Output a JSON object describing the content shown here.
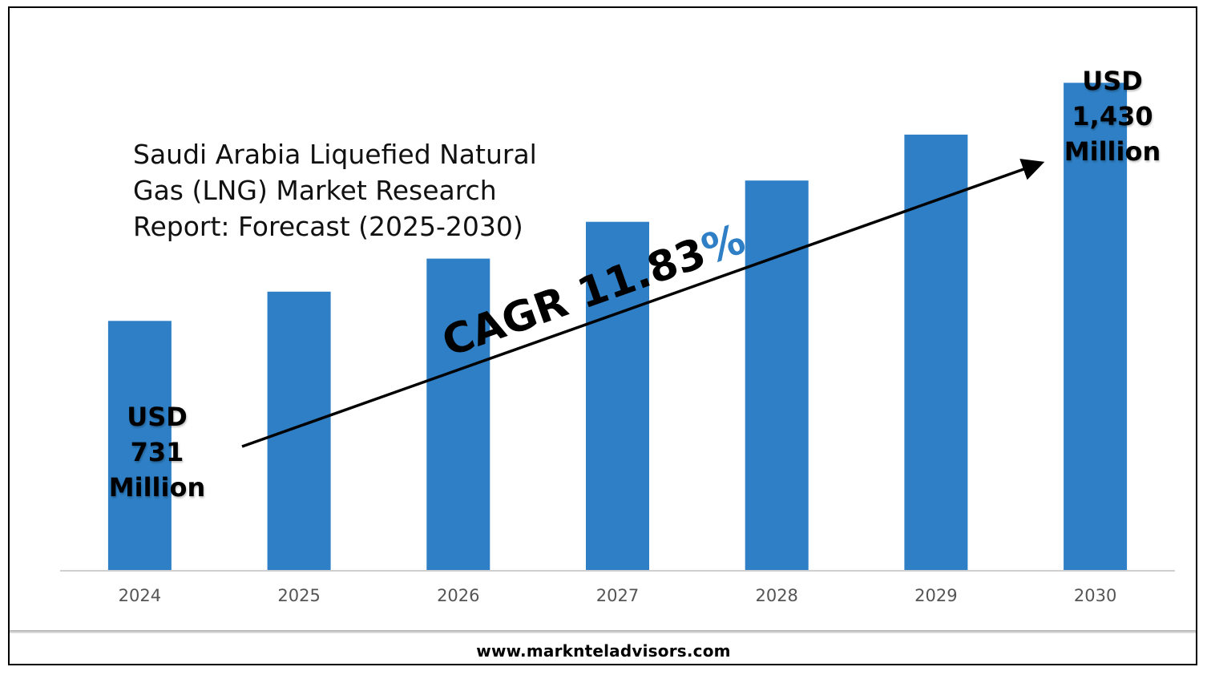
{
  "chart_data": {
    "type": "bar",
    "title": "Saudi Arabia Liquefied Natural Gas (LNG) Market Research Report: Forecast (2025-2030)",
    "title_lines": [
      "Saudi Arabia Liquefied Natural",
      "Gas (LNG) Market Research",
      "Report: Forecast (2025-2030)"
    ],
    "categories": [
      "2024",
      "2025",
      "2026",
      "2027",
      "2028",
      "2029",
      "2030"
    ],
    "values": [
      731,
      817,
      914,
      1022,
      1143,
      1278,
      1430
    ],
    "unit": "USD Million",
    "ylim": [
      0,
      1600
    ],
    "bar_color": "#2e7fc5",
    "start_label": [
      "USD",
      "731",
      "Million"
    ],
    "end_label": [
      "USD",
      "1,430",
      "Million"
    ],
    "cagr_text": "CAGR 11.83",
    "cagr_pct_symbol": "%",
    "cagr_pct_color": "#2e7fc5",
    "legend": "none",
    "grid": false
  },
  "footer": {
    "website": "www.marknteladvisors.com"
  }
}
